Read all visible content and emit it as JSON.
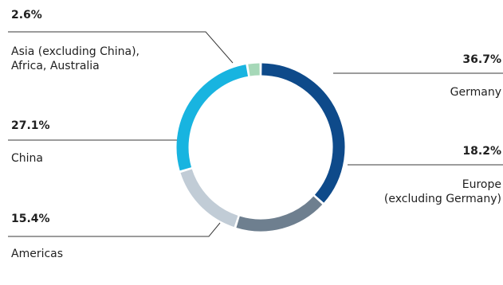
{
  "chart_data": {
    "type": "pie",
    "style": "donut",
    "segments": [
      {
        "label": "Germany",
        "value": 36.7,
        "value_label": "36.7%",
        "color": "#0e4a8a"
      },
      {
        "label": "Europe\n(excluding Germany)",
        "value": 18.2,
        "value_label": "18.2%",
        "color": "#6e7f8f"
      },
      {
        "label": "Americas",
        "value": 15.4,
        "value_label": "15.4%",
        "color": "#c1ccd6"
      },
      {
        "label": "China",
        "value": 27.1,
        "value_label": "27.1%",
        "color": "#18b4e0"
      },
      {
        "label": "Asia (excluding China),\nAfrica, Australia",
        "value": 2.6,
        "value_label": "2.6%",
        "color": "#a6d8b8"
      }
    ]
  }
}
